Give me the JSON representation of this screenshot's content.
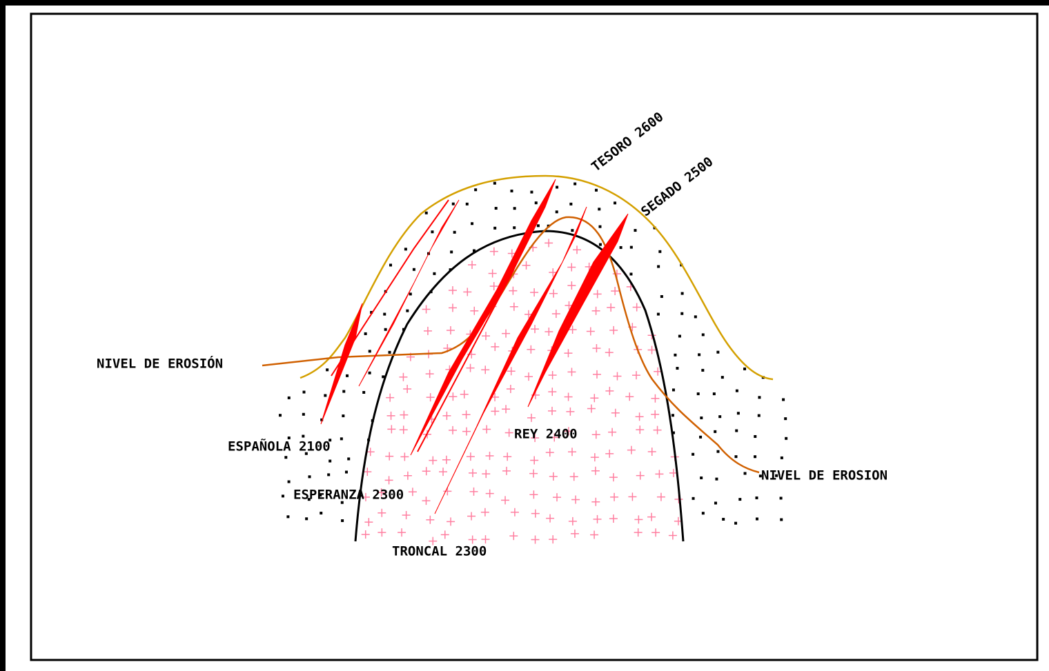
{
  "labels": {
    "erosion_left": "NIVEL DE EROSIÓN",
    "erosion_right": "NIVEL DE EROSION",
    "espanola": "ESPAÑOLA 2100",
    "esperanza": "ESPERANZA 2300",
    "troncal": "TRONCAL 2300",
    "rey": "REY 2400",
    "tesoro": "TESORO 2600",
    "segado": "SEGADO 2500"
  }
}
